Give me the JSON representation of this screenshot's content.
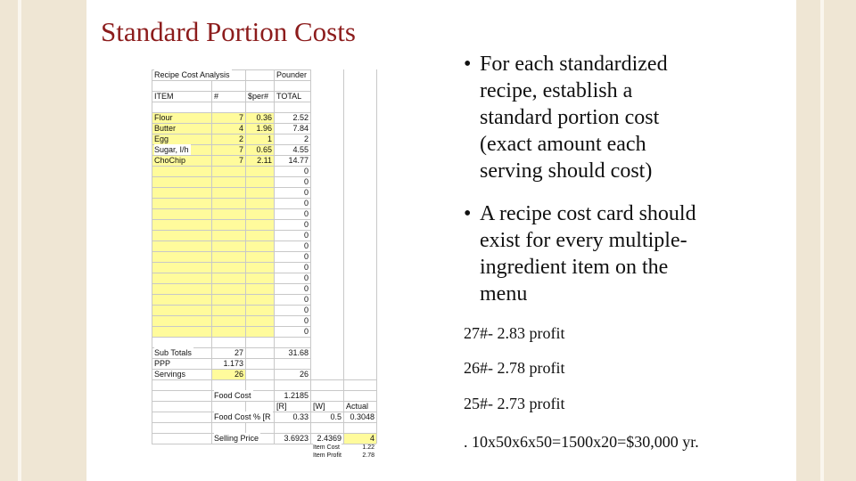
{
  "slide": {
    "title": "Standard Portion Costs",
    "bullets": [
      [
        "For each standardized",
        "recipe, establish a",
        "standard portion cost",
        "(exact amount each",
        "serving should cost)"
      ],
      [
        "A recipe cost card should",
        "exist for every multiple-",
        "ingredient item on the",
        "menu"
      ]
    ],
    "notes": [
      "27#- 2.83 profit",
      "26#- 2.78 profit",
      "25#- 2.73 profit",
      ". 10x50x6x50=1500x20=$30,000 yr."
    ]
  },
  "sheet": {
    "rows": [
      [
        "Recipe Cost Analysis",
        null,
        null,
        "Pounder",
        null,
        null
      ],
      null,
      [
        "ITEM",
        "#",
        "$per#",
        "TOTAL",
        null,
        null
      ],
      null,
      [
        "Flour",
        "7",
        "0.36",
        "2.52",
        null,
        null
      ],
      [
        "Butter",
        "4",
        "1.96",
        "7.84",
        null,
        null
      ],
      [
        "Egg",
        "2",
        "1",
        "2",
        null,
        null
      ],
      [
        "Sugar, I/h",
        "7",
        "0.65",
        "4.55",
        null,
        null
      ],
      [
        "ChoChip",
        "7",
        "2.11",
        "14.77",
        null,
        null
      ],
      [
        null,
        null,
        null,
        "0",
        null,
        null
      ],
      [
        null,
        null,
        null,
        "0",
        null,
        null
      ],
      [
        null,
        null,
        null,
        "0",
        null,
        null
      ],
      [
        null,
        null,
        null,
        "0",
        null,
        null
      ],
      [
        null,
        null,
        null,
        "0",
        null,
        null
      ],
      [
        null,
        null,
        null,
        "0",
        null,
        null
      ],
      [
        null,
        null,
        null,
        "0",
        null,
        null
      ],
      [
        null,
        null,
        null,
        "0",
        null,
        null
      ],
      [
        null,
        null,
        null,
        "0",
        null,
        null
      ],
      [
        null,
        null,
        null,
        "0",
        null,
        null
      ],
      [
        null,
        null,
        null,
        "0",
        null,
        null
      ],
      [
        null,
        null,
        null,
        "0",
        null,
        null
      ],
      [
        null,
        null,
        null,
        "0",
        null,
        null
      ],
      [
        null,
        null,
        null,
        "0",
        null,
        null
      ],
      [
        null,
        null,
        null,
        "0",
        null,
        null
      ],
      [
        null,
        null,
        null,
        "0",
        null,
        null
      ],
      null,
      [
        "Sub Totals",
        "27",
        null,
        "31.68",
        null,
        null
      ],
      [
        "PPP",
        "1.173",
        null,
        null,
        null,
        null
      ],
      [
        "Servings",
        "26",
        null,
        "26",
        null,
        null
      ],
      null,
      [
        null,
        "Food Cost",
        null,
        "1.2185",
        null,
        null
      ],
      [
        null,
        null,
        null,
        "[R]",
        "[W]",
        "Actual"
      ],
      [
        null,
        "Food Cost % [R",
        null,
        "0.33",
        "0.5",
        "0.3048"
      ],
      null,
      [
        null,
        "Selling Price",
        null,
        "3.6923",
        "2.4369",
        "4"
      ],
      [
        null,
        null,
        null,
        null,
        "Item Cost",
        "1.22"
      ],
      [
        null,
        null,
        null,
        null,
        "Item Profit",
        "2.78"
      ]
    ]
  }
}
